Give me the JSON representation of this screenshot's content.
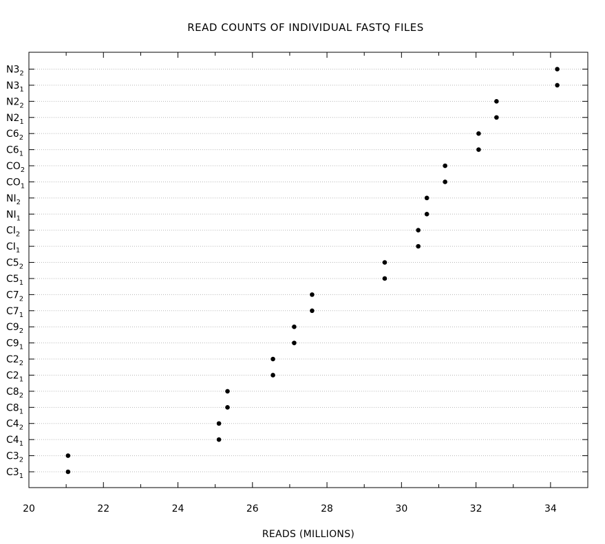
{
  "chart_data": {
    "type": "scatter",
    "title": "READ COUNTS OF INDIVIDUAL FASTQ FILES",
    "xlabel": "READS (MILLIONS)",
    "ylabel": "",
    "xlim": [
      20,
      35
    ],
    "xticks": [
      20,
      22,
      24,
      26,
      28,
      30,
      32,
      34
    ],
    "grid": "horizontal dotted",
    "categories": [
      {
        "name": "C3",
        "sub": "1",
        "value": 21.05
      },
      {
        "name": "C3",
        "sub": "2",
        "value": 21.05
      },
      {
        "name": "C4",
        "sub": "1",
        "value": 25.1
      },
      {
        "name": "C4",
        "sub": "2",
        "value": 25.1
      },
      {
        "name": "C8",
        "sub": "1",
        "value": 25.33
      },
      {
        "name": "C8",
        "sub": "2",
        "value": 25.33
      },
      {
        "name": "C2",
        "sub": "1",
        "value": 26.55
      },
      {
        "name": "C2",
        "sub": "2",
        "value": 26.55
      },
      {
        "name": "C9",
        "sub": "1",
        "value": 27.12
      },
      {
        "name": "C9",
        "sub": "2",
        "value": 27.12
      },
      {
        "name": "C7",
        "sub": "1",
        "value": 27.6
      },
      {
        "name": "C7",
        "sub": "2",
        "value": 27.6
      },
      {
        "name": "C5",
        "sub": "1",
        "value": 29.55
      },
      {
        "name": "C5",
        "sub": "2",
        "value": 29.55
      },
      {
        "name": "CI",
        "sub": "1",
        "value": 30.45
      },
      {
        "name": "CI",
        "sub": "2",
        "value": 30.45
      },
      {
        "name": "NI",
        "sub": "1",
        "value": 30.68
      },
      {
        "name": "NI",
        "sub": "2",
        "value": 30.68
      },
      {
        "name": "CO",
        "sub": "1",
        "value": 31.17
      },
      {
        "name": "CO",
        "sub": "2",
        "value": 31.17
      },
      {
        "name": "C6",
        "sub": "1",
        "value": 32.07
      },
      {
        "name": "C6",
        "sub": "2",
        "value": 32.07
      },
      {
        "name": "N2",
        "sub": "1",
        "value": 32.55
      },
      {
        "name": "N2",
        "sub": "2",
        "value": 32.55
      },
      {
        "name": "N3",
        "sub": "1",
        "value": 34.18
      },
      {
        "name": "N3",
        "sub": "2",
        "value": 34.18
      }
    ]
  }
}
